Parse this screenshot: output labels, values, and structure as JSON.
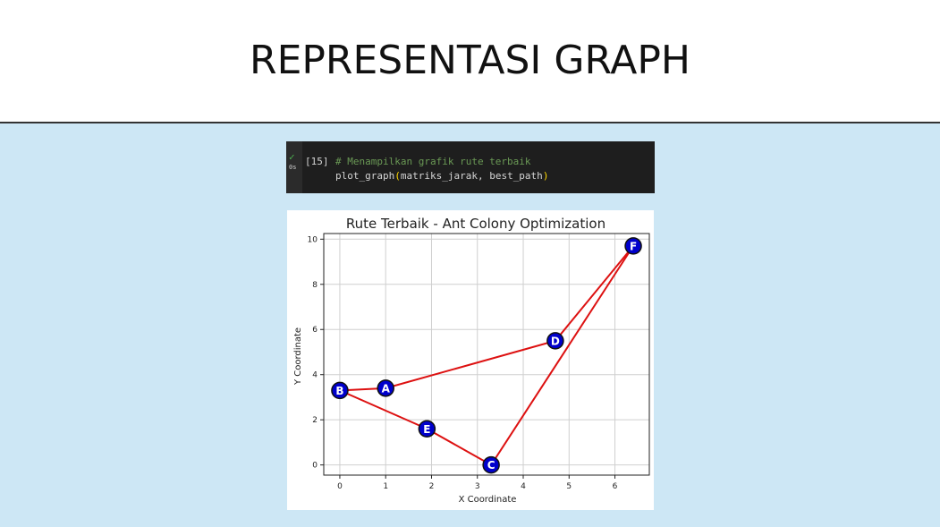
{
  "slide": {
    "title": "REPRESENTASI GRAPH"
  },
  "code_cell": {
    "execution_count": "[15]",
    "run_time": "0s",
    "comment": "# Menampilkan grafik rute terbaik",
    "code_func": "plot_graph",
    "code_args": "matriks_jarak, best_path",
    "colors": {
      "comment": "#6a9955",
      "paren": "#ffd700",
      "check": "#4caf50"
    }
  },
  "chart_data": {
    "type": "scatter",
    "title": "Rute Terbaik - Ant Colony Optimization",
    "xlabel": "X Coordinate",
    "ylabel": "Y Coordinate",
    "xlim": [
      -0.35,
      6.75
    ],
    "ylim": [
      -0.45,
      10.25
    ],
    "xticks": [
      0,
      1,
      2,
      3,
      4,
      5,
      6
    ],
    "yticks": [
      0,
      2,
      4,
      6,
      8,
      10
    ],
    "grid": true,
    "nodes": [
      {
        "label": "A",
        "x": 1.0,
        "y": 3.4
      },
      {
        "label": "B",
        "x": 0.0,
        "y": 3.3
      },
      {
        "label": "C",
        "x": 3.3,
        "y": 0.0
      },
      {
        "label": "D",
        "x": 4.7,
        "y": 5.5
      },
      {
        "label": "E",
        "x": 1.9,
        "y": 1.6
      },
      {
        "label": "F",
        "x": 6.4,
        "y": 9.7
      }
    ],
    "route": [
      "A",
      "B",
      "E",
      "C",
      "F",
      "D",
      "A"
    ],
    "colors": {
      "edge": "#dd1111",
      "node_fill": "#0000cc",
      "node_stroke": "#111111",
      "node_label": "#ffffff",
      "grid": "#cfcfcf"
    }
  }
}
